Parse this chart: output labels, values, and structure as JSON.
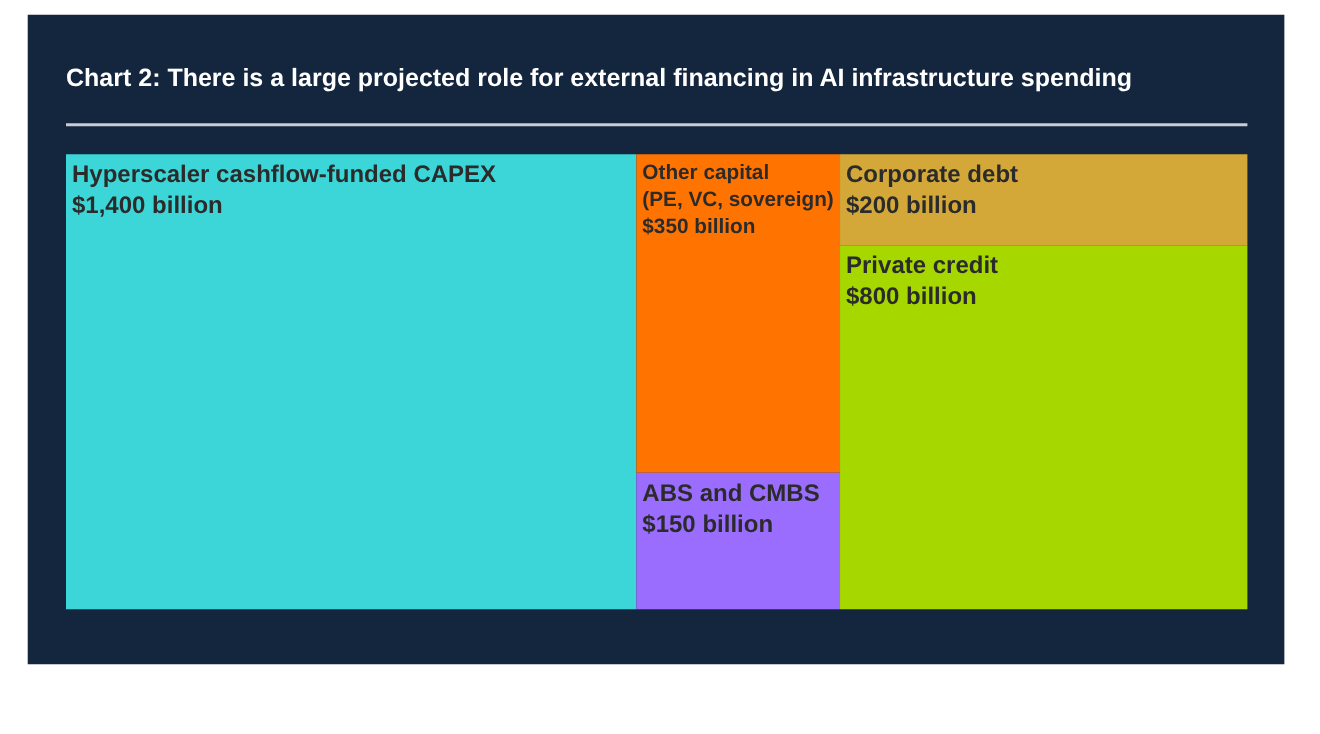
{
  "chart_data": {
    "type": "other",
    "title": "Chart 2: There is a large projected role for external financing in AI infrastructure spending",
    "categories": [
      "Hyperscaler cashflow-funded CAPEX",
      "Other capital\n(PE, VC, sovereign)",
      "ABS and CMBS",
      "Corporate debt",
      "Private credit"
    ],
    "values": [
      1400,
      350,
      150,
      200,
      800
    ],
    "value_labels": [
      "$1,400 billion",
      "$350 billion",
      "$150 billion",
      "$200 billion",
      "$800 billion"
    ],
    "colors": [
      "#3dd6d8",
      "#ff7300",
      "#9b6dff",
      "#d4a838",
      "#a6d800"
    ]
  }
}
